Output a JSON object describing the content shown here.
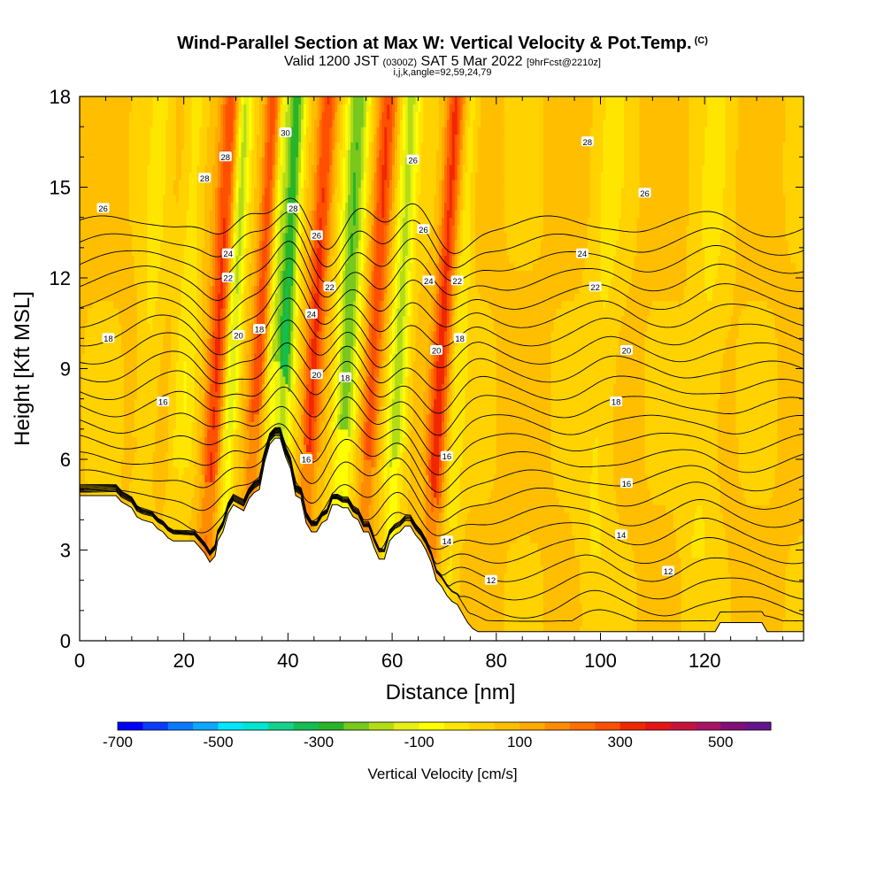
{
  "chart_data": {
    "type": "heatmap",
    "title": "Wind-Parallel Section at Max W: Vertical Velocity & Pot.Temp.",
    "copyright_mark": "(C)",
    "subtitle": {
      "valid": "Valid 1200 JST",
      "utc": "(0300Z)",
      "date": "SAT 5 Mar 2022",
      "forecast": "[9hrFcst@2210z]"
    },
    "subtitle2": "i,j,k,angle=92,59,24,79",
    "xlabel": "Distance [nm]",
    "ylabel": "Height [Kft MSL]",
    "xlim": [
      0,
      139
    ],
    "ylim": [
      0,
      18
    ],
    "xticks": [
      0,
      20,
      40,
      60,
      80,
      100,
      120
    ],
    "yticks": [
      0,
      3,
      6,
      9,
      12,
      15,
      18
    ],
    "colorbar": {
      "label": "Vertical Velocity [cm/s]",
      "range": [
        -700,
        600
      ],
      "ticks": [
        -700,
        -500,
        -300,
        -100,
        100,
        300,
        500
      ],
      "colors": [
        "#0000ff",
        "#0a3cff",
        "#0a78ff",
        "#0aa8ff",
        "#00e6ff",
        "#00e6d0",
        "#14d28c",
        "#14be50",
        "#28b428",
        "#78c81e",
        "#b4dc14",
        "#e6f014",
        "#ffff00",
        "#ffe600",
        "#ffd200",
        "#ffbe00",
        "#ffaa00",
        "#ff8c00",
        "#ff6e00",
        "#ff5000",
        "#f02800",
        "#e61414",
        "#c8143c",
        "#aa1464",
        "#820f78",
        "#64148c"
      ]
    },
    "vertical_velocity_bands": [
      {
        "x": 26,
        "w": 2.0,
        "value": 260
      },
      {
        "x": 29,
        "w": 1.5,
        "value": -240
      },
      {
        "x": 34,
        "w": 1.6,
        "value": 220
      },
      {
        "x": 36.5,
        "w": 1.2,
        "value": -150
      },
      {
        "x": 39,
        "w": 1.8,
        "value": -360
      },
      {
        "x": 44.5,
        "w": 1.8,
        "value": 260
      },
      {
        "x": 51,
        "w": 2.2,
        "value": -300
      },
      {
        "x": 56,
        "w": 1.8,
        "value": 230
      },
      {
        "x": 61,
        "w": 1.8,
        "value": -220
      },
      {
        "x": 69,
        "w": 1.8,
        "value": 260
      },
      {
        "x": 72.5,
        "w": 1.6,
        "value": -100
      },
      {
        "x": 20,
        "w": 2.0,
        "value": -90
      },
      {
        "x": 13,
        "w": 2.0,
        "value": -70
      },
      {
        "x": 100,
        "w": 3.0,
        "value": -60
      },
      {
        "x": 120,
        "w": 3.0,
        "value": -60
      }
    ],
    "theta_contours": {
      "levels": [
        11,
        12,
        13,
        14,
        15,
        16,
        17,
        18,
        19,
        20,
        21,
        22,
        23,
        24,
        25,
        26,
        27,
        28,
        29,
        30,
        31,
        32,
        33
      ],
      "labels": [
        {
          "text": "26",
          "x": 4.5,
          "y": 14.3
        },
        {
          "text": "18",
          "x": 5.5,
          "y": 10.0
        },
        {
          "text": "16",
          "x": 16,
          "y": 7.9
        },
        {
          "text": "28",
          "x": 24,
          "y": 15.3
        },
        {
          "text": "28",
          "x": 28,
          "y": 16.0
        },
        {
          "text": "24",
          "x": 28.5,
          "y": 12.8
        },
        {
          "text": "22",
          "x": 28.5,
          "y": 12.0
        },
        {
          "text": "20",
          "x": 30.5,
          "y": 10.1
        },
        {
          "text": "18",
          "x": 34.5,
          "y": 10.3
        },
        {
          "text": "30",
          "x": 39.5,
          "y": 16.8
        },
        {
          "text": "28",
          "x": 41,
          "y": 14.3
        },
        {
          "text": "26",
          "x": 45.5,
          "y": 13.4
        },
        {
          "text": "22",
          "x": 48,
          "y": 11.7
        },
        {
          "text": "24",
          "x": 44.5,
          "y": 10.8
        },
        {
          "text": "20",
          "x": 45.5,
          "y": 8.8
        },
        {
          "text": "18",
          "x": 51,
          "y": 8.7
        },
        {
          "text": "16",
          "x": 43.5,
          "y": 6.0
        },
        {
          "text": "26",
          "x": 64,
          "y": 15.9
        },
        {
          "text": "26",
          "x": 66,
          "y": 13.6
        },
        {
          "text": "24",
          "x": 67,
          "y": 11.9
        },
        {
          "text": "22",
          "x": 72.5,
          "y": 11.9
        },
        {
          "text": "20",
          "x": 68.5,
          "y": 9.6
        },
        {
          "text": "18",
          "x": 73,
          "y": 10.0
        },
        {
          "text": "16",
          "x": 70.5,
          "y": 6.1
        },
        {
          "text": "14",
          "x": 70.5,
          "y": 3.3
        },
        {
          "text": "12",
          "x": 79,
          "y": 2.0
        },
        {
          "text": "28",
          "x": 97.5,
          "y": 16.5
        },
        {
          "text": "26",
          "x": 108.5,
          "y": 14.8
        },
        {
          "text": "24",
          "x": 96.5,
          "y": 12.8
        },
        {
          "text": "22",
          "x": 99,
          "y": 11.7
        },
        {
          "text": "20",
          "x": 105,
          "y": 9.6
        },
        {
          "text": "18",
          "x": 103,
          "y": 7.9
        },
        {
          "text": "16",
          "x": 105,
          "y": 5.2
        },
        {
          "text": "14",
          "x": 104,
          "y": 3.5
        },
        {
          "text": "12",
          "x": 113,
          "y": 2.3
        }
      ]
    },
    "terrain": [
      [
        0,
        4.8
      ],
      [
        7,
        4.8
      ],
      [
        8,
        4.6
      ],
      [
        10,
        4.4
      ],
      [
        11,
        4.1
      ],
      [
        12,
        4.0
      ],
      [
        14,
        3.9
      ],
      [
        15,
        3.7
      ],
      [
        16,
        3.6
      ],
      [
        17,
        3.4
      ],
      [
        18,
        3.3
      ],
      [
        20,
        3.3
      ],
      [
        22,
        3.3
      ],
      [
        23,
        3.1
      ],
      [
        24,
        2.9
      ],
      [
        25,
        2.6
      ],
      [
        26,
        2.8
      ],
      [
        26.5,
        3.3
      ],
      [
        27.5,
        3.6
      ],
      [
        28.5,
        4.2
      ],
      [
        29.5,
        4.5
      ],
      [
        30.5,
        4.4
      ],
      [
        31.5,
        4.3
      ],
      [
        32.5,
        4.7
      ],
      [
        33.5,
        4.9
      ],
      [
        34.5,
        5.0
      ],
      [
        35.5,
        5.9
      ],
      [
        36.5,
        6.5
      ],
      [
        37.5,
        6.7
      ],
      [
        38.5,
        6.7
      ],
      [
        39.5,
        6.1
      ],
      [
        40.5,
        5.7
      ],
      [
        41.5,
        4.8
      ],
      [
        42.5,
        4.7
      ],
      [
        43.5,
        3.9
      ],
      [
        44.5,
        3.6
      ],
      [
        45.5,
        3.6
      ],
      [
        46.5,
        3.9
      ],
      [
        47.5,
        4.0
      ],
      [
        48.5,
        4.5
      ],
      [
        49.5,
        4.5
      ],
      [
        50.5,
        4.4
      ],
      [
        51.5,
        4.4
      ],
      [
        52.5,
        4.1
      ],
      [
        53.5,
        4.0
      ],
      [
        54.5,
        3.6
      ],
      [
        55.5,
        3.6
      ],
      [
        56.5,
        3.1
      ],
      [
        57.5,
        2.7
      ],
      [
        58.5,
        2.7
      ],
      [
        59.5,
        3.3
      ],
      [
        60.5,
        3.5
      ],
      [
        61.5,
        3.6
      ],
      [
        62.5,
        3.8
      ],
      [
        63.5,
        3.8
      ],
      [
        64.5,
        3.5
      ],
      [
        65.5,
        3.3
      ],
      [
        66.5,
        3.0
      ],
      [
        67.5,
        2.6
      ],
      [
        68.5,
        2.0
      ],
      [
        69.5,
        1.8
      ],
      [
        70.5,
        1.5
      ],
      [
        71.5,
        1.3
      ],
      [
        72.5,
        1.2
      ],
      [
        73.5,
        0.9
      ],
      [
        74.5,
        0.6
      ],
      [
        75.5,
        0.4
      ],
      [
        76.5,
        0.3
      ],
      [
        122,
        0.3
      ],
      [
        123,
        0.6
      ],
      [
        131,
        0.6
      ],
      [
        132,
        0.3
      ],
      [
        139,
        0.3
      ]
    ]
  }
}
